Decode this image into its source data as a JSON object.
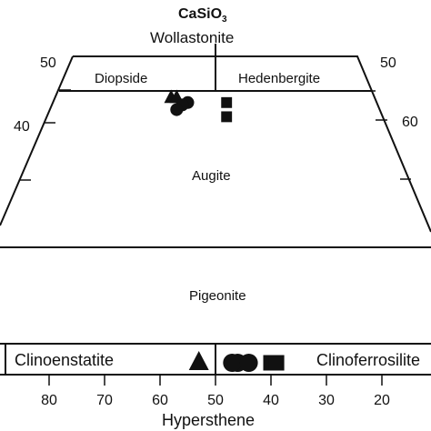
{
  "apex": {
    "formula": "CaSiO",
    "formula_sub": "3",
    "name": "Wollastonite"
  },
  "fields": {
    "diopside": "Diopside",
    "hedenbergite": "Hedenbergite",
    "augite": "Augite",
    "pigeonite": "Pigeonite",
    "clinoenstatite": "Clinoenstatite",
    "clinoferrosilite": "Clinoferrosilite"
  },
  "left_ticks": [
    "50",
    "40"
  ],
  "right_ticks": [
    "50",
    "60"
  ],
  "bottom_ticks": [
    "80",
    "70",
    "60",
    "50",
    "40",
    "30",
    "20"
  ],
  "bottom_axis_title": "Hypersthene",
  "chart_data": {
    "type": "scatter",
    "xlabel": "Hypersthene",
    "series": [
      {
        "marker": "triangle",
        "points": [
          [
            58,
            47
          ],
          [
            57,
            47
          ],
          [
            53,
            2
          ]
        ]
      },
      {
        "marker": "circle",
        "points": [
          [
            55,
            46
          ],
          [
            56,
            45.5
          ],
          [
            57,
            44.5
          ],
          [
            46,
            2
          ],
          [
            47,
            2
          ],
          [
            44,
            2
          ]
        ]
      },
      {
        "marker": "square",
        "points": [
          [
            48,
            46
          ],
          [
            48,
            43
          ],
          [
            40,
            2
          ],
          [
            39,
            2
          ]
        ]
      }
    ]
  }
}
